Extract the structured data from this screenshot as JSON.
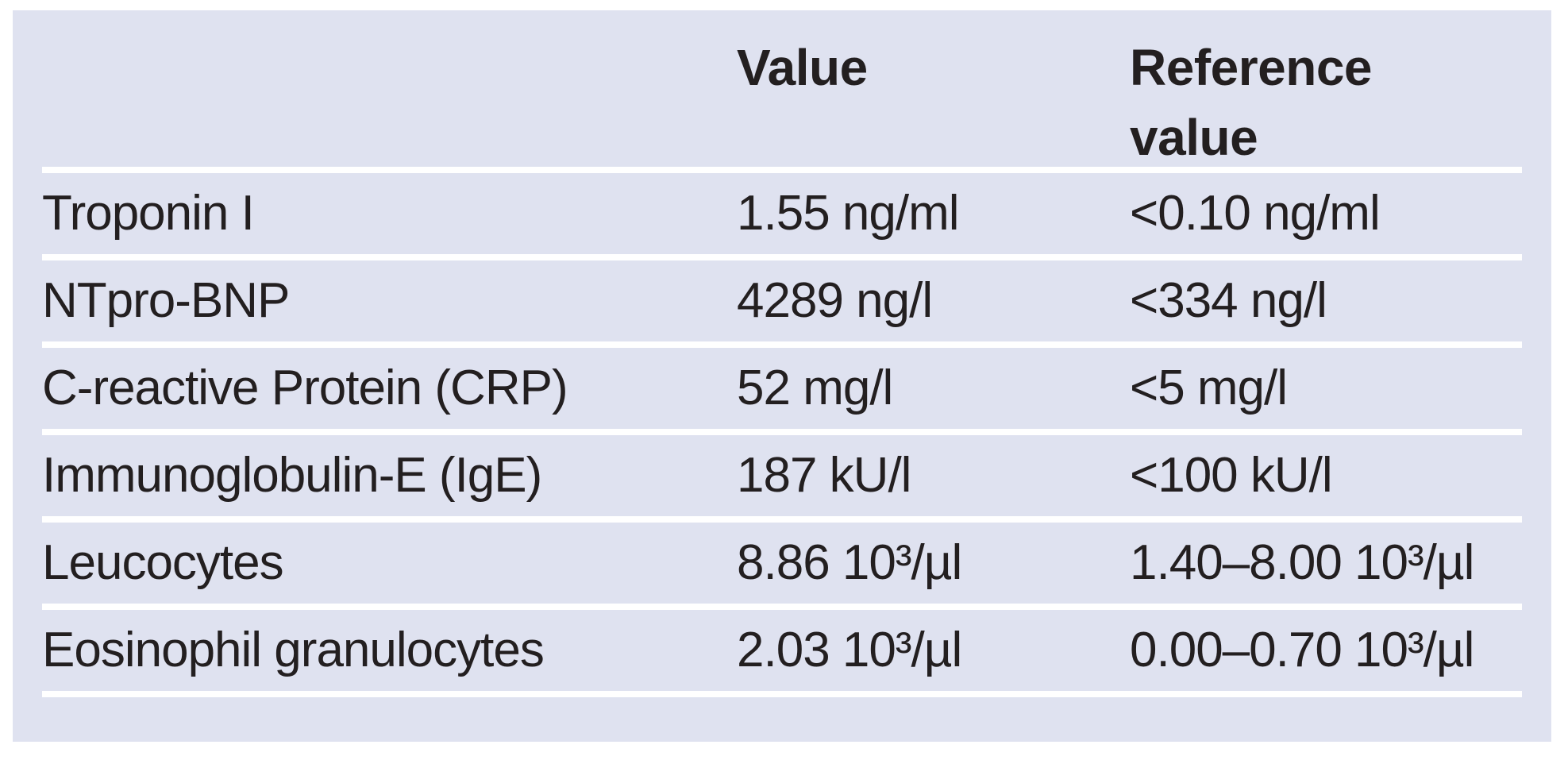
{
  "table": {
    "columns": [
      {
        "label": ""
      },
      {
        "label": "Value"
      },
      {
        "label": "Reference value"
      }
    ],
    "rows": [
      {
        "name": "Troponin I",
        "value": "1.55 ng/ml",
        "reference": "<0.10 ng/ml"
      },
      {
        "name": "NTpro-BNP",
        "value": "4289 ng/l",
        "reference": "<334 ng/l"
      },
      {
        "name": "C-reactive Protein (CRP)",
        "value": "52 mg/l",
        "reference": "<5 mg/l"
      },
      {
        "name": "Immunoglobulin-E (IgE)",
        "value": "187 kU/l",
        "reference": "<100 kU/l"
      },
      {
        "name": "Leucocytes",
        "value": "8.86 10³/µl",
        "reference": "1.40–8.00 10³/µl"
      },
      {
        "name": "Eosinophil granulocytes",
        "value": "2.03 10³/µl",
        "reference": "0.00–0.70 10³/µl"
      }
    ],
    "colors": {
      "panel_background": "#dfe2f0",
      "separator": "#ffffff",
      "text": "#231f20",
      "page_background": "#ffffff"
    }
  }
}
